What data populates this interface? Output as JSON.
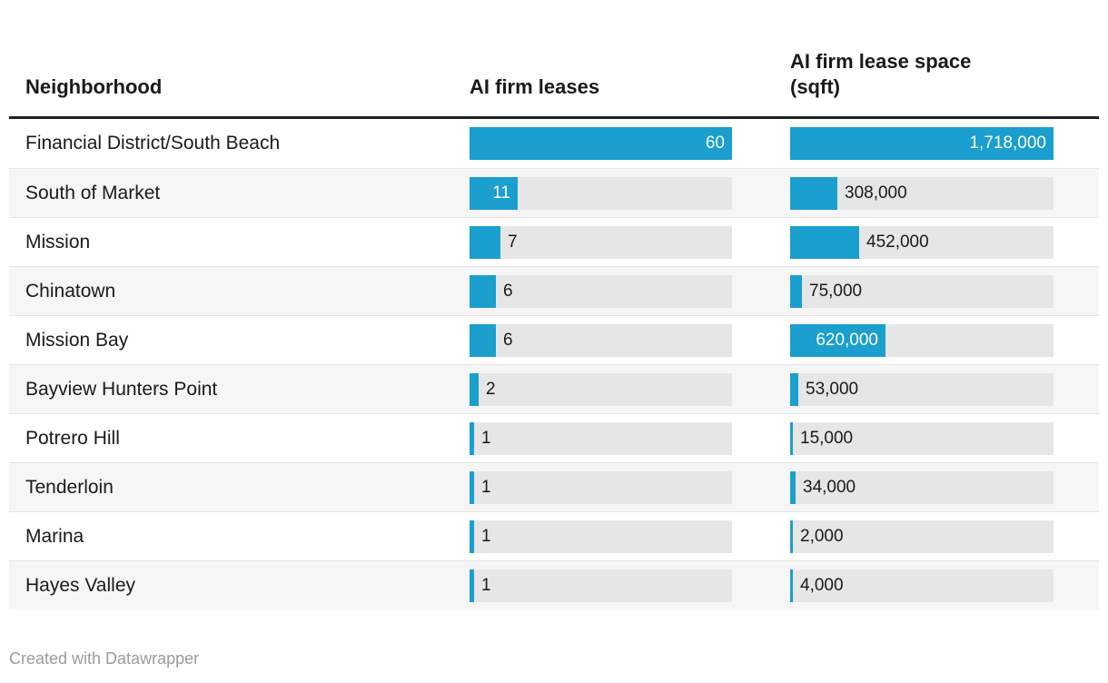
{
  "header": {
    "col_neighborhood": "Neighborhood",
    "col_leases": "AI firm leases",
    "col_space": "AI firm lease space (sqft)"
  },
  "footer": {
    "credit": "Created with Datawrapper"
  },
  "colors": {
    "bar_blue": "#1a9fce",
    "bar_track_gray": "#e6e6e6",
    "zebra_row": "#f6f6f6",
    "header_rule": "#222222",
    "row_divider": "#e4e4e4",
    "text_dark": "#1a1a1a",
    "bar_label_inside": "#ffffff",
    "footer_text": "#9b9b9b"
  },
  "chart_data": {
    "type": "table",
    "title": "",
    "columns": [
      "Neighborhood",
      "AI firm leases",
      "AI firm lease space (sqft)"
    ],
    "categories": [
      "Financial District/South Beach",
      "South of Market",
      "Mission",
      "Chinatown",
      "Mission Bay",
      "Bayview Hunters Point",
      "Potrero Hill",
      "Tenderloin",
      "Marina",
      "Hayes Valley"
    ],
    "series": [
      {
        "name": "AI firm leases",
        "values": [
          60,
          11,
          7,
          6,
          6,
          2,
          1,
          1,
          1,
          1
        ],
        "labels": [
          "60",
          "11",
          "7",
          "6",
          "6",
          "2",
          "1",
          "1",
          "1",
          "1"
        ],
        "max": 60
      },
      {
        "name": "AI firm lease space (sqft)",
        "values": [
          1718000,
          308000,
          452000,
          75000,
          620000,
          53000,
          15000,
          34000,
          2000,
          4000
        ],
        "labels": [
          "1,718,000",
          "308,000",
          "452,000",
          "75,000",
          "620,000",
          "53,000",
          "15,000",
          "34,000",
          "2,000",
          "4,000"
        ],
        "max": 1718000
      }
    ],
    "layout": {
      "bar_style": "horizontal",
      "grid": false,
      "legend": false
    }
  }
}
